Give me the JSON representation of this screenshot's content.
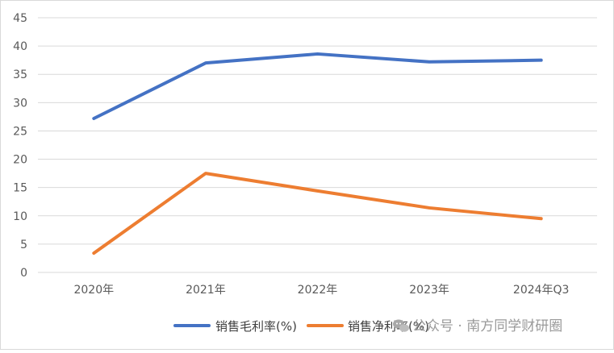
{
  "chart_data": {
    "type": "line",
    "categories": [
      "2020年",
      "2021年",
      "2022年",
      "2023年",
      "2024年Q3"
    ],
    "ylim": [
      0,
      45
    ],
    "yticks": [
      0,
      5,
      10,
      15,
      20,
      25,
      30,
      35,
      40,
      45
    ],
    "grid": true,
    "legend_position": "bottom",
    "series": [
      {
        "name": "销售毛利率(%)",
        "color": "#4472C4",
        "values": [
          27.2,
          37.0,
          38.6,
          37.2,
          37.5
        ]
      },
      {
        "name": "销售净利率(%)",
        "color": "#ED7D31",
        "values": [
          3.4,
          17.5,
          14.4,
          11.4,
          9.5
        ]
      }
    ]
  },
  "watermark": {
    "text": "公众号 · 南方同学财研圈",
    "icon": "wechat-icon"
  }
}
